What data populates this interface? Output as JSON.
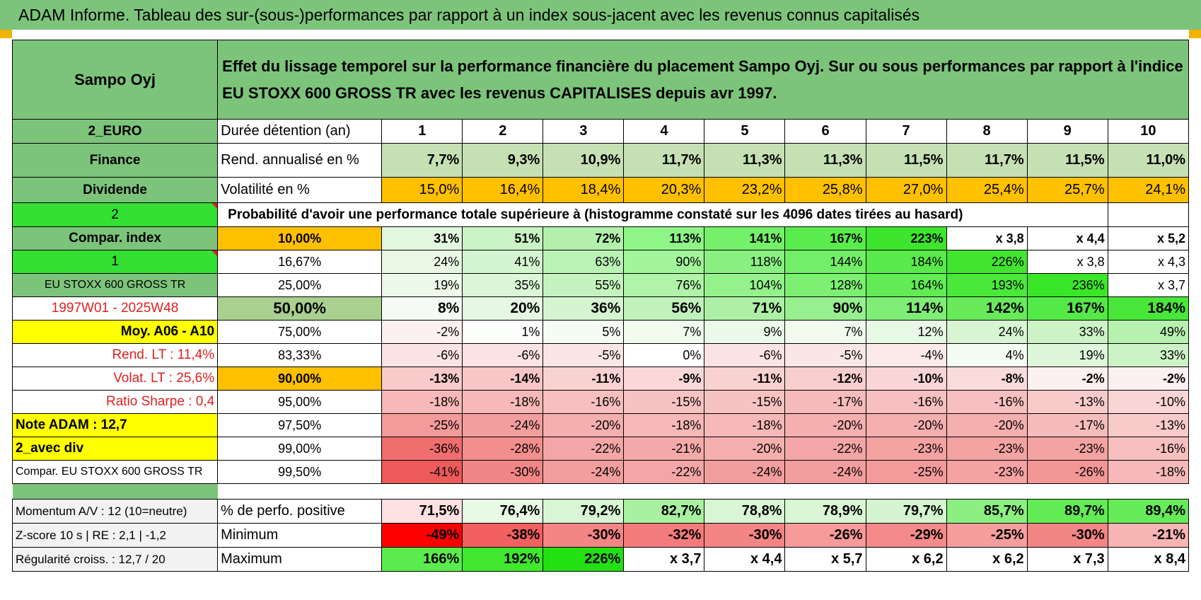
{
  "title": "ADAM Informe. Tableau des sur-(sous-)performances par rapport à un index sous-jacent avec les revenus connus capitalisés",
  "header": {
    "name": "Sampo Oyj",
    "description_line1": "Effet du lissage temporel sur la performance financière du placement Sampo Oyj. Sur ou sous performances par rapport à l'indice",
    "description_line2": "EU STOXX 600 GROSS TR avec les revenus CAPITALISES depuis avr 1997."
  },
  "rows": [
    {
      "type": "top",
      "side": "2_EURO",
      "sideBg": "#7dc47b",
      "sideColor": "#000",
      "sideAlign": "c",
      "sideBold": true,
      "label": "Durée détention (an)",
      "values": [
        "1",
        "2",
        "3",
        "4",
        "5",
        "6",
        "7",
        "8",
        "9",
        "10"
      ],
      "valAlign": "c",
      "valBold": true,
      "colors": [
        "#ffffff",
        "#ffffff",
        "#ffffff",
        "#ffffff",
        "#ffffff",
        "#ffffff",
        "#ffffff",
        "#ffffff",
        "#ffffff",
        "#ffffff"
      ]
    },
    {
      "type": "top",
      "side": "Finance",
      "sideBg": "#7dc47b",
      "sideColor": "#000",
      "sideAlign": "c",
      "sideBold": true,
      "label": "Rend. annualisé en %",
      "values": [
        "7,7%",
        "9,3%",
        "10,9%",
        "11,7%",
        "11,3%",
        "11,3%",
        "11,5%",
        "11,7%",
        "11,5%",
        "11,0%"
      ],
      "valAlign": "r",
      "valBold": true,
      "colors": [
        "#c6e0b4",
        "#c6e0b4",
        "#c6e0b4",
        "#c6e0b4",
        "#c6e0b4",
        "#c6e0b4",
        "#c6e0b4",
        "#c6e0b4",
        "#c6e0b4",
        "#c6e0b4"
      ]
    },
    {
      "type": "top",
      "side": "Dividende",
      "sideBg": "#7dc47b",
      "sideColor": "#000",
      "sideAlign": "c",
      "sideBold": true,
      "label": "Volatilité en %",
      "values": [
        "15,0%",
        "16,4%",
        "18,4%",
        "20,3%",
        "23,2%",
        "25,8%",
        "27,0%",
        "25,4%",
        "25,7%",
        "24,1%"
      ],
      "valAlign": "r",
      "valBold": false,
      "colors": [
        "#ffc000",
        "#ffc000",
        "#ffc000",
        "#ffc000",
        "#ffc000",
        "#ffc000",
        "#ffc000",
        "#ffc000",
        "#ffc000",
        "#ffc000"
      ]
    },
    {
      "type": "prob",
      "side": "2",
      "sideBg": "#33e033",
      "text": "Probabilité d'avoir une performance totale supérieure à (histogramme constaté sur les 4096 dates tirées au hasard)"
    },
    {
      "type": "grid",
      "side": "Compar. index",
      "sideBg": "#7dc47b",
      "sideColor": "#000",
      "sideAlign": "c",
      "sideBold": true,
      "label": "10,00%",
      "labelBg": "#ffc000",
      "bold": true,
      "big": false,
      "values": [
        "31%",
        "51%",
        "72%",
        "113%",
        "141%",
        "167%",
        "223%",
        "x 3,8",
        "x 4,4",
        "x 5,2"
      ],
      "colors": [
        "#e3f7e0",
        "#c9f3c4",
        "#b2f0ab",
        "#8ef586",
        "#75f06a",
        "#5aec4c",
        "#3de52c",
        "#ffffff",
        "#ffffff",
        "#ffffff"
      ]
    },
    {
      "type": "grid",
      "side": "1",
      "sideBg": "#33e033",
      "sideColor": "#000",
      "sideAlign": "c",
      "sideBold": false,
      "tri": true,
      "label": "16,67%",
      "labelBg": "#ffffff",
      "bold": false,
      "big": false,
      "values": [
        "24%",
        "41%",
        "63%",
        "90%",
        "118%",
        "144%",
        "184%",
        "226%",
        "x 3,8",
        "x 4,3"
      ],
      "colors": [
        "#e8f8e5",
        "#d3f5cf",
        "#bbf2b5",
        "#a2f59b",
        "#8af082",
        "#72ee68",
        "#58ea4a",
        "#41e52f",
        "#ffffff",
        "#ffffff"
      ]
    },
    {
      "type": "grid",
      "side": "EU STOXX 600 GROSS TR",
      "sideBg": "#7dc47b",
      "sideColor": "#000",
      "sideAlign": "c",
      "sideBold": false,
      "small": true,
      "label": "25,00%",
      "labelBg": "#ffffff",
      "bold": false,
      "big": false,
      "values": [
        "19%",
        "35%",
        "55%",
        "76%",
        "104%",
        "128%",
        "164%",
        "193%",
        "236%",
        "x 3,7"
      ],
      "colors": [
        "#edfaea",
        "#dbf6d7",
        "#c5f3bf",
        "#b0f3a9",
        "#95f18c",
        "#7def72",
        "#62eb55",
        "#4be73b",
        "#3ae628",
        "#ffffff"
      ]
    },
    {
      "type": "grid",
      "side": "1997W01 - 2025W48",
      "sideBg": "#ffffff",
      "sideColor": "#e02020",
      "sideAlign": "c",
      "sideBold": false,
      "label": "50,00%",
      "labelBg": "#a9d08e",
      "bold": true,
      "big": true,
      "values": [
        "8%",
        "20%",
        "36%",
        "56%",
        "71%",
        "90%",
        "114%",
        "142%",
        "167%",
        "184%"
      ],
      "colors": [
        "#f5fbf4",
        "#e6f8e3",
        "#d5f5d0",
        "#c1f2bb",
        "#adf0a5",
        "#98ef8f",
        "#80ee76",
        "#68ea5b",
        "#55e947",
        "#48e739"
      ]
    },
    {
      "type": "grid",
      "side": "Moy. A06 - A10",
      "sideBg": "#ffff00",
      "sideColor": "#000",
      "sideAlign": "r",
      "sideBold": true,
      "label": "75,00%",
      "labelBg": "#ffffff",
      "bold": false,
      "big": false,
      "values": [
        "-2%",
        "1%",
        "5%",
        "7%",
        "9%",
        "7%",
        "12%",
        "24%",
        "33%",
        "49%"
      ],
      "colors": [
        "#fdf0f0",
        "#fbfefb",
        "#f4fcf3",
        "#f0fbee",
        "#ecfaea",
        "#f0fbee",
        "#e7f9e4",
        "#d8f5d3",
        "#ccf3c6",
        "#b7f1b0"
      ]
    },
    {
      "type": "grid",
      "side": "Rend. LT :    11,4%",
      "sideBg": "#ffffff",
      "sideColor": "#e02020",
      "sideAlign": "r",
      "sideBold": false,
      "label": "83,33%",
      "labelBg": "#ffffff",
      "bold": false,
      "big": false,
      "values": [
        "-6%",
        "-6%",
        "-5%",
        "0%",
        "-6%",
        "-5%",
        "-4%",
        "4%",
        "19%",
        "33%"
      ],
      "colors": [
        "#fbe3e3",
        "#fbe3e3",
        "#fbe6e6",
        "#ffffff",
        "#fbe3e3",
        "#fbe6e6",
        "#fce9e9",
        "#f5fcf4",
        "#def6da",
        "#ccf3c6"
      ]
    },
    {
      "type": "grid",
      "side": "Volat. LT :    25,6%",
      "sideBg": "#ffffff",
      "sideColor": "#e02020",
      "sideAlign": "r",
      "sideBold": false,
      "label": "90,00%",
      "labelBg": "#ffc000",
      "bold": true,
      "big": false,
      "values": [
        "-13%",
        "-14%",
        "-11%",
        "-9%",
        "-11%",
        "-12%",
        "-10%",
        "-8%",
        "-2%",
        "-2%"
      ],
      "colors": [
        "#f8caca",
        "#f8c6c6",
        "#f9d1d1",
        "#fad8d8",
        "#f9d1d1",
        "#f9cece",
        "#fad5d5",
        "#fadbdb",
        "#fdf0f0",
        "#fdf0f0"
      ]
    },
    {
      "type": "grid",
      "side": "Ratio Sharpe :     0,4",
      "sideBg": "#ffffff",
      "sideColor": "#e02020",
      "sideAlign": "r",
      "sideBold": false,
      "label": "95,00%",
      "labelBg": "#ffffff",
      "bold": false,
      "big": false,
      "values": [
        "-18%",
        "-18%",
        "-16%",
        "-15%",
        "-15%",
        "-17%",
        "-16%",
        "-16%",
        "-13%",
        "-10%"
      ],
      "colors": [
        "#f6b8b8",
        "#f6b8b8",
        "#f7bfbf",
        "#f7c2c2",
        "#f7c2c2",
        "#f6bbbb",
        "#f7bfbf",
        "#f7bfbf",
        "#f8caca",
        "#fad5d5"
      ]
    },
    {
      "type": "grid",
      "side": "Note ADAM : 12,7",
      "sideBg": "#ffff00",
      "sideColor": "#000",
      "sideAlign": "l",
      "sideBold": true,
      "label": "97,50%",
      "labelBg": "#ffffff",
      "bold": false,
      "big": false,
      "values": [
        "-25%",
        "-24%",
        "-20%",
        "-18%",
        "-18%",
        "-20%",
        "-20%",
        "-20%",
        "-17%",
        "-13%"
      ],
      "colors": [
        "#f39a9a",
        "#f39e9e",
        "#f5afaf",
        "#f6b8b8",
        "#f6b8b8",
        "#f5afaf",
        "#f5afaf",
        "#f5afaf",
        "#f6bbbb",
        "#f8caca"
      ]
    },
    {
      "type": "grid",
      "side": "2_avec div",
      "sideBg": "#ffff00",
      "sideColor": "#000",
      "sideAlign": "l",
      "sideBold": true,
      "label": "99,00%",
      "labelBg": "#ffffff",
      "bold": false,
      "big": false,
      "values": [
        "-36%",
        "-28%",
        "-22%",
        "-21%",
        "-20%",
        "-22%",
        "-23%",
        "-23%",
        "-23%",
        "-16%"
      ],
      "colors": [
        "#ef6e6e",
        "#f28e8e",
        "#f4a6a6",
        "#f5aaaa",
        "#f5afaf",
        "#f4a6a6",
        "#f4a2a2",
        "#f4a2a2",
        "#f4a2a2",
        "#f7bfbf"
      ]
    },
    {
      "type": "grid",
      "side": "Compar. EU STOXX 600 GROSS TR",
      "sideBg": "#ffffff",
      "sideColor": "#000",
      "sideAlign": "l",
      "sideBold": false,
      "small": true,
      "label": "99,50%",
      "labelBg": "#ffffff",
      "bold": false,
      "big": false,
      "values": [
        "-41%",
        "-30%",
        "-24%",
        "-22%",
        "-24%",
        "-24%",
        "-25%",
        "-23%",
        "-26%",
        "-18%"
      ],
      "colors": [
        "#ec5a5a",
        "#f18686",
        "#f39e9e",
        "#f4a6a6",
        "#f39e9e",
        "#f39e9e",
        "#f39a9a",
        "#f4a2a2",
        "#f39696",
        "#f6b8b8"
      ]
    },
    {
      "type": "sep"
    },
    {
      "type": "stat",
      "side": "Momentum A/V : 12 (10=neutre)",
      "label": "% de perfo. positive",
      "bold": true,
      "values": [
        "71,5%",
        "76,4%",
        "79,2%",
        "82,7%",
        "78,8%",
        "78,9%",
        "79,7%",
        "85,7%",
        "89,7%",
        "89,4%"
      ],
      "colors": [
        "#fde0e0",
        "#e8f9e5",
        "#d9f6d4",
        "#a9f1a1",
        "#d9f6d4",
        "#d9f6d4",
        "#d5f5d0",
        "#8bef81",
        "#62eb55",
        "#66eb59"
      ]
    },
    {
      "type": "stat",
      "side": "Z-score 10 s | RE : 2,1 | -1,2",
      "label": "Minimum",
      "bold": true,
      "values": [
        "-49%",
        "-38%",
        "-30%",
        "-32%",
        "-30%",
        "-26%",
        "-29%",
        "-25%",
        "-30%",
        "-21%"
      ],
      "colors": [
        "#ff0000",
        "#f26060",
        "#f48585",
        "#f47b7b",
        "#f48585",
        "#f69a9a",
        "#f58a8a",
        "#f69e9e",
        "#f48585",
        "#f8b3b3"
      ]
    },
    {
      "type": "stat",
      "side": "Régularité croiss. : 12,7 / 20",
      "label": "Maximum",
      "bold": true,
      "values": [
        "166%",
        "192%",
        "226%",
        "x 3,7",
        "x 4,4",
        "x 5,7",
        "x 6,2",
        "x 6,2",
        "x 7,3",
        "x 8,4"
      ],
      "colors": [
        "#5aec4c",
        "#3fe72d",
        "#22e011",
        "#ffffff",
        "#ffffff",
        "#ffffff",
        "#ffffff",
        "#ffffff",
        "#ffffff",
        "#ffffff"
      ]
    }
  ]
}
